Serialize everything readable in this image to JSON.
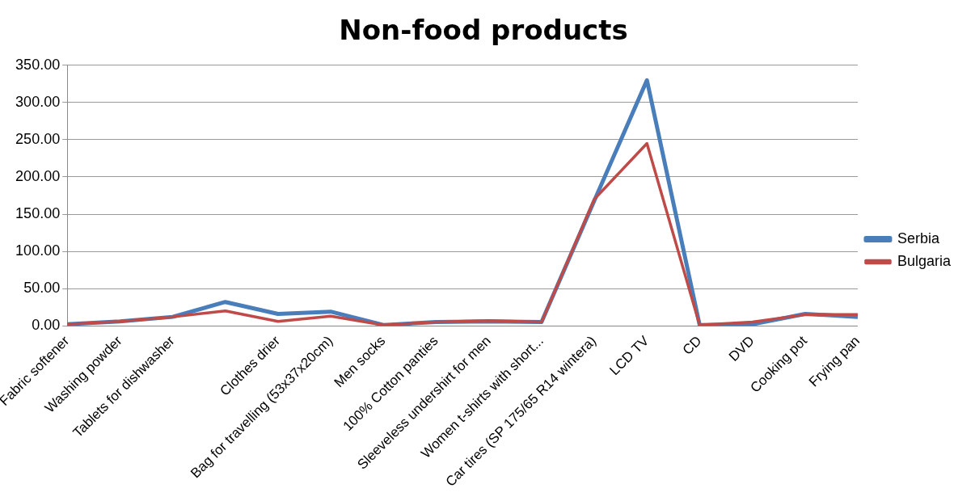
{
  "chart_data": {
    "type": "line",
    "title": "Non-food products",
    "categories": [
      "Fabric softener",
      "Washing powder",
      "Tablets for dishwasher",
      null,
      "Clothes drier",
      "Bag for travelling (53x37x20cm)",
      "Men socks",
      "100% Cotton panties",
      "Sleeveless undershirt for men",
      "Women t-shirts with short...",
      "Car tires (SP 175/65 R14 wintera)",
      "LCD TV",
      "CD",
      "DVD",
      "Cooking pot",
      "Frying pan"
    ],
    "series": [
      {
        "name": "Serbia",
        "color": "#4a7ebb",
        "values": [
          2,
          6,
          12,
          32,
          16,
          19,
          1,
          5,
          6,
          5,
          168,
          330,
          1,
          2,
          16,
          12
        ]
      },
      {
        "name": "Bulgaria",
        "color": "#be4b48",
        "values": [
          2,
          6,
          12,
          20,
          6,
          13,
          1,
          5,
          7,
          5,
          170,
          245,
          1,
          5,
          15,
          15
        ]
      }
    ],
    "ylim": [
      0,
      350
    ],
    "yticks": [
      {
        "value": 0,
        "label": "0.00"
      },
      {
        "value": 50,
        "label": "50.00"
      },
      {
        "value": 100,
        "label": "100.00"
      },
      {
        "value": 150,
        "label": "150.00"
      },
      {
        "value": 200,
        "label": "200.00"
      },
      {
        "value": 250,
        "label": "250.00"
      },
      {
        "value": 300,
        "label": "300.00"
      },
      {
        "value": 350,
        "label": "350.00"
      }
    ],
    "grid": "y",
    "legend": "right",
    "marker": "none",
    "line_style": "solid"
  }
}
